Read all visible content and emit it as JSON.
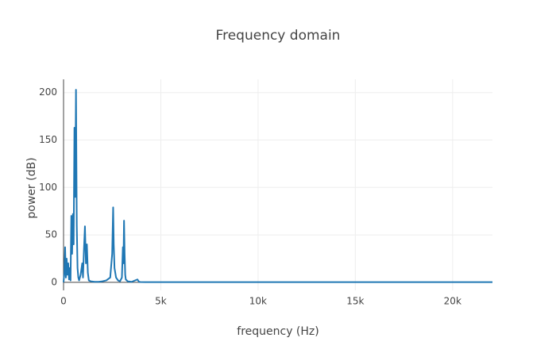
{
  "chart_data": {
    "type": "line",
    "title": "Frequency domain",
    "x_label": "frequency (Hz)",
    "y_label": "power (dB)",
    "x": [
      0,
      40,
      80,
      120,
      160,
      200,
      240,
      280,
      320,
      360,
      400,
      440,
      480,
      520,
      560,
      600,
      640,
      680,
      720,
      760,
      800,
      880,
      960,
      1000,
      1050,
      1100,
      1150,
      1200,
      1250,
      1300,
      1400,
      1600,
      1800,
      2000,
      2200,
      2400,
      2500,
      2550,
      2580,
      2620,
      2700,
      2800,
      2900,
      3000,
      3050,
      3080,
      3110,
      3140,
      3170,
      3200,
      3300,
      3500,
      3800,
      3880,
      3950,
      4200,
      5000,
      10000,
      15000,
      20000,
      22050
    ],
    "series": [
      {
        "color": "#1f77b4",
        "values": [
          0,
          10,
          37,
          5,
          25,
          8,
          20,
          3,
          15,
          2,
          70,
          30,
          72,
          40,
          163,
          90,
          203,
          60,
          15,
          5,
          2,
          8,
          20,
          5,
          35,
          59,
          20,
          40,
          10,
          2,
          1,
          0.5,
          0.5,
          1,
          2,
          5,
          30,
          79,
          40,
          15,
          5,
          2,
          1,
          5,
          37,
          20,
          65,
          30,
          8,
          3,
          1,
          0.5,
          3,
          0.5,
          0.3,
          0.2,
          0.2,
          0.2,
          0.2,
          0.2,
          0.2
        ]
      }
    ],
    "xlim": [
      0,
      22050
    ],
    "ylim": [
      -8.5,
      214
    ],
    "xticks": [
      0,
      {
        "value": 5000,
        "label": "5k"
      },
      {
        "value": 10000,
        "label": "10k"
      },
      {
        "value": 15000,
        "label": "15k"
      },
      {
        "value": 20000,
        "label": "20k"
      }
    ],
    "yticks": [
      0,
      50,
      100,
      150,
      200
    ],
    "grid": true
  }
}
